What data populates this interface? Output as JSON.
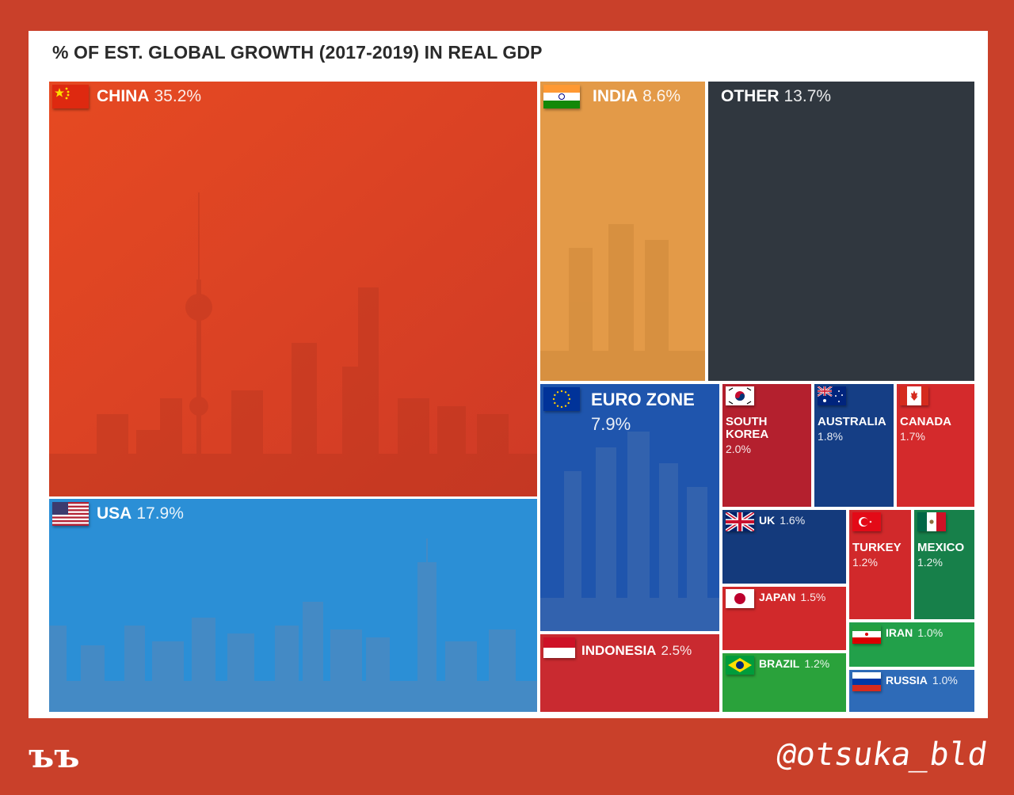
{
  "chart_data": {
    "type": "treemap",
    "title": "% OF EST. GLOBAL GROWTH (2017-2019) IN REAL GDP",
    "tiles": [
      {
        "name": "CHINA",
        "value_label": "35.2%",
        "value": 35.2,
        "color": "#e14a26"
      },
      {
        "name": "USA",
        "value_label": "17.9%",
        "value": 17.9,
        "color": "#2b8fd6"
      },
      {
        "name": "INDIA",
        "value_label": "8.6%",
        "value": 8.6,
        "color": "#e39a48"
      },
      {
        "name": "OTHER",
        "value_label": "13.7%",
        "value": 13.7,
        "color": "#30373f"
      },
      {
        "name": "EURO ZONE",
        "value_label": "7.9%",
        "value": 7.9,
        "color": "#1f55ad"
      },
      {
        "name": "INDONESIA",
        "value_label": "2.5%",
        "value": 2.5,
        "color": "#c92a30"
      },
      {
        "name": "SOUTH KOREA",
        "value_label": "2.0%",
        "value": 2.0,
        "color": "#b4202e"
      },
      {
        "name": "AUSTRALIA",
        "value_label": "1.8%",
        "value": 1.8,
        "color": "#153e85"
      },
      {
        "name": "CANADA",
        "value_label": "1.7%",
        "value": 1.7,
        "color": "#d42a2c"
      },
      {
        "name": "UK",
        "value_label": "1.6%",
        "value": 1.6,
        "color": "#143a7c"
      },
      {
        "name": "JAPAN",
        "value_label": "1.5%",
        "value": 1.5,
        "color": "#d1292b"
      },
      {
        "name": "BRAZIL",
        "value_label": "1.2%",
        "value": 1.2,
        "color": "#2aa23b"
      },
      {
        "name": "TURKEY",
        "value_label": "1.2%",
        "value": 1.2,
        "color": "#d1292b"
      },
      {
        "name": "MEXICO",
        "value_label": "1.2%",
        "value": 1.2,
        "color": "#17804a"
      },
      {
        "name": "IRAN",
        "value_label": "1.0%",
        "value": 1.0,
        "color": "#22a04a"
      },
      {
        "name": "RUSSIA",
        "value_label": "1.0%",
        "value": 1.0,
        "color": "#2e6bb8"
      }
    ]
  },
  "footer": {
    "logo": "ъъ",
    "handle": "@otsuka_bld"
  }
}
